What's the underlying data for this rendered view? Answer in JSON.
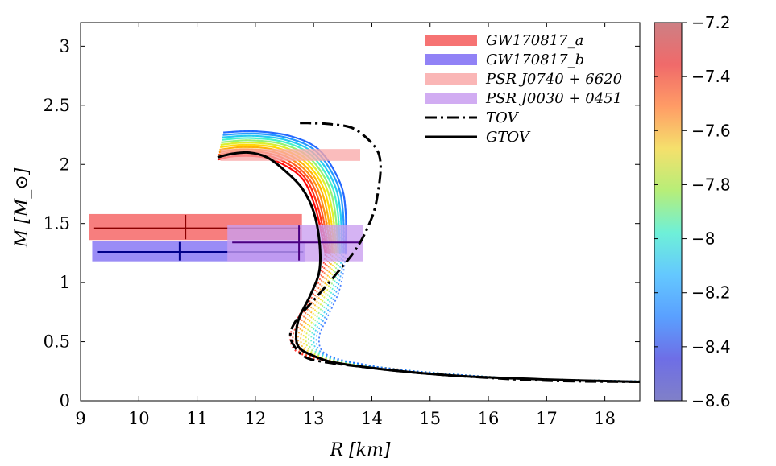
{
  "chart_data": {
    "type": "line",
    "xlabel": "R [km]",
    "ylabel": "M [M_⊙]",
    "xlim": [
      9,
      18.6
    ],
    "ylim": [
      0,
      3.2
    ],
    "x_ticks": [
      "9",
      "10",
      "11",
      "12",
      "13",
      "14",
      "15",
      "16",
      "17",
      "18"
    ],
    "y_ticks": [
      "0",
      "0.5",
      "1",
      "1.5",
      "2",
      "2.5",
      "3"
    ],
    "legend": [
      {
        "label": "GW170817_a",
        "color": "#f55a5a",
        "style": "band"
      },
      {
        "label": "GW170817_b",
        "color": "#7e6cf4",
        "style": "band"
      },
      {
        "label": "PSR J0740 + 6620",
        "color": "#f9a9a9",
        "style": "band"
      },
      {
        "label": "PSR J0030 + 0451",
        "color": "#c99df0",
        "style": "band"
      },
      {
        "label": "TOV",
        "color": "#000000",
        "style": "dash-dot"
      },
      {
        "label": "GTOV",
        "color": "#000000",
        "style": "solid"
      }
    ],
    "constraints": [
      {
        "name": "GW170817_a",
        "x_range": [
          9.15,
          12.8
        ],
        "y_range": [
          1.36,
          1.58
        ],
        "center": [
          10.8,
          1.46
        ],
        "color": "#f55a5a",
        "line": "#8b0000"
      },
      {
        "name": "GW170817_b",
        "x_range": [
          9.2,
          12.85
        ],
        "y_range": [
          1.18,
          1.35
        ],
        "center": [
          10.7,
          1.26
        ],
        "color": "#7e6cf4",
        "line": "#00008b"
      },
      {
        "name": "PSR J0740 + 6620",
        "x_range": [
          11.4,
          13.8
        ],
        "y_range": [
          2.03,
          2.13
        ],
        "center": null,
        "color": "#f9a9a9",
        "line": null
      },
      {
        "name": "PSR J0030 + 0451",
        "x_range": [
          11.52,
          13.85
        ],
        "y_range": [
          1.18,
          1.49
        ],
        "center": [
          12.75,
          1.34
        ],
        "color": "#c99df0",
        "line": "#4b0082"
      }
    ],
    "series": [
      {
        "name": "TOV",
        "style": "dash-dot",
        "x": [
          18.6,
          17.0,
          15.5,
          14.5,
          13.8,
          13.3,
          12.9,
          12.7,
          12.6,
          12.7,
          13.0,
          13.35,
          13.75,
          14.0,
          14.1,
          14.15,
          14.05,
          13.7,
          13.3,
          12.9,
          12.75
        ],
        "y": [
          0.16,
          0.17,
          0.21,
          0.25,
          0.29,
          0.32,
          0.36,
          0.44,
          0.55,
          0.68,
          0.85,
          1.05,
          1.3,
          1.55,
          1.75,
          2.0,
          2.15,
          2.3,
          2.34,
          2.35,
          2.35
        ]
      },
      {
        "name": "GTOV",
        "style": "solid",
        "x": [
          18.6,
          17.0,
          15.5,
          14.5,
          13.8,
          13.3,
          13.0,
          12.75,
          12.7,
          12.75,
          12.95,
          13.1,
          13.1,
          13.0,
          12.8,
          12.5,
          12.2,
          11.9,
          11.6,
          11.35
        ],
        "y": [
          0.16,
          0.18,
          0.21,
          0.25,
          0.29,
          0.33,
          0.38,
          0.45,
          0.56,
          0.7,
          0.9,
          1.1,
          1.35,
          1.6,
          1.8,
          1.95,
          2.06,
          2.1,
          2.09,
          2.06
        ]
      }
    ],
    "family": {
      "description": "colored mass-radius curves parameterised by log10 value on colorbar",
      "values": [
        -7.2,
        -7.3,
        -7.4,
        -7.5,
        -7.6,
        -7.7,
        -7.8,
        -7.9,
        -8.0,
        -8.1,
        -8.2,
        -8.3
      ],
      "colors": [
        "#ff0000",
        "#ff2a10",
        "#ff5a1a",
        "#ff8c10",
        "#ffb000",
        "#ffd700",
        "#d9ee2a",
        "#90f070",
        "#40f0c8",
        "#20c8f0",
        "#1e96ff",
        "#1e64ff"
      ]
    },
    "colorbar": {
      "min": -8.6,
      "max": -7.2,
      "ticks": [
        "-7.2",
        "-7.4",
        "-7.6",
        "-7.8",
        "-8",
        "-8.2",
        "-8.4",
        "-8.6"
      ],
      "stops": [
        "#cd7f84",
        "#f06a6a",
        "#ff9c66",
        "#f5e06c",
        "#b7ee78",
        "#6ef0d8",
        "#64c8ff",
        "#5aa0ff",
        "#6e6ee6",
        "#8080c8"
      ]
    }
  }
}
